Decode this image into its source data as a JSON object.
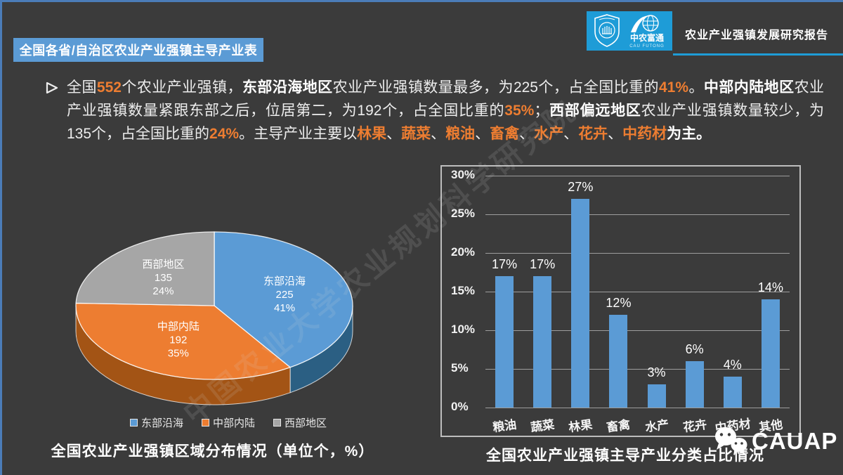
{
  "header": {
    "banner_title": "全国各省/自治区农业产业强镇主导产业表",
    "report_title": "农业产业强镇发展研究报告",
    "logo": {
      "university_seal_icon": "university-seal-icon",
      "futong_name": "中农富通",
      "futong_sub": "CAU FUTONG"
    }
  },
  "colors": {
    "background": "#3B3B3B",
    "accent_blue": "#5B9BD5",
    "accent_orange": "#ED7D31",
    "accent_gray": "#A6A6A6",
    "logo_blue": "#1E9CD7",
    "edge_blue": "#4B7CB8"
  },
  "intro": {
    "segments": [
      {
        "text": "全国",
        "style": "plain"
      },
      {
        "text": "552",
        "style": "orange"
      },
      {
        "text": "个农业产业强镇，",
        "style": "plain"
      },
      {
        "text": "东部沿海地区",
        "style": "bold"
      },
      {
        "text": "农业产业强镇数量最多，为225个，占全国比重的",
        "style": "plain"
      },
      {
        "text": "41%",
        "style": "orange"
      },
      {
        "text": "。",
        "style": "plain"
      },
      {
        "text": "中部内陆地区",
        "style": "bold"
      },
      {
        "text": "农业产业强镇数量紧跟东部之后，位居第二，为192个，占全国比重的",
        "style": "plain"
      },
      {
        "text": "35%",
        "style": "orange"
      },
      {
        "text": "；",
        "style": "plain"
      },
      {
        "text": "西部偏远地区",
        "style": "bold"
      },
      {
        "text": "农业产业强镇数量较少，为135个，占全国比重的",
        "style": "plain"
      },
      {
        "text": "24%",
        "style": "orange"
      },
      {
        "text": "。主导产业主要以",
        "style": "plain"
      },
      {
        "text": "林果",
        "style": "orange"
      },
      {
        "text": "、",
        "style": "plain"
      },
      {
        "text": "蔬菜",
        "style": "orange"
      },
      {
        "text": "、",
        "style": "plain"
      },
      {
        "text": "粮油",
        "style": "orange"
      },
      {
        "text": "、",
        "style": "plain"
      },
      {
        "text": "畜禽",
        "style": "orange"
      },
      {
        "text": "、",
        "style": "plain"
      },
      {
        "text": "水产",
        "style": "orange"
      },
      {
        "text": "、",
        "style": "plain"
      },
      {
        "text": "花卉",
        "style": "orange"
      },
      {
        "text": "、",
        "style": "plain"
      },
      {
        "text": "中药材",
        "style": "orange"
      },
      {
        "text": "为主。",
        "style": "bold"
      }
    ]
  },
  "chart_data": [
    {
      "type": "pie",
      "style": "3d",
      "title": "全国农业产业强镇区域分布情况（单位个，%）",
      "legend_position": "bottom",
      "series": [
        {
          "name": "东部沿海",
          "value": 225,
          "pct_label": "41%",
          "color": "#5B9BD5",
          "side_color": "#2B5F83"
        },
        {
          "name": "中部内陆",
          "value": 192,
          "pct_label": "35%",
          "color": "#ED7D31",
          "side_color": "#A35415"
        },
        {
          "name": "西部地区",
          "value": 135,
          "pct_label": "24%",
          "color": "#A6A6A6",
          "side_color": "#7A7A7A"
        }
      ]
    },
    {
      "type": "bar",
      "title": "全国农业产业强镇主导产业分类占比情况",
      "categories": [
        "粮油",
        "蔬菜",
        "林果",
        "畜禽",
        "水产",
        "花卉",
        "中药材",
        "其他"
      ],
      "values": [
        17,
        17,
        27,
        12,
        3,
        6,
        4,
        14
      ],
      "data_labels": [
        "17%",
        "17%",
        "27%",
        "12%",
        "3%",
        "6%",
        "4%",
        "14%"
      ],
      "y_ticks": [
        "0%",
        "5%",
        "10%",
        "15%",
        "20%",
        "25%",
        "30%"
      ],
      "ylim": [
        0,
        30
      ],
      "grid": true,
      "bar_color": "#5B9BD5",
      "xlabel": "",
      "ylabel": ""
    }
  ],
  "watermark": "中国农业大学农业规划科学研究院",
  "footer": {
    "brand": "CAUAP",
    "icon": "wechat-icon"
  }
}
